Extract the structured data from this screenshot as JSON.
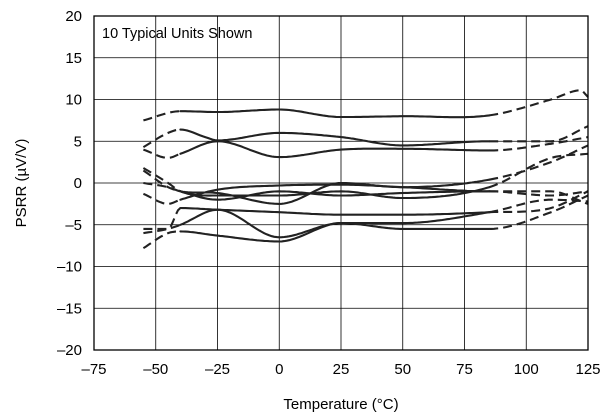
{
  "chart_data": {
    "type": "line",
    "title": "",
    "annotation": "10 Typical Units Shown",
    "xlabel": "Temperature (°C)",
    "ylabel": "PSRR (µV/V)",
    "xlim": [
      -75,
      125
    ],
    "ylim": [
      -20,
      20
    ],
    "x_ticks": [
      -75,
      -50,
      -25,
      0,
      25,
      50,
      75,
      100,
      125
    ],
    "y_ticks": [
      20,
      15,
      10,
      5,
      0,
      -5,
      -10,
      -15,
      -20
    ],
    "x_tick_labels": [
      "–75",
      "–50",
      "–25",
      "0",
      "25",
      "50",
      "75",
      "100",
      "125"
    ],
    "y_tick_labels": [
      "20",
      "15",
      "10",
      "5",
      "0",
      "–5",
      "–10",
      "–15",
      "–20"
    ],
    "grid": true,
    "legend": "none",
    "solid_range": [
      -40,
      85
    ],
    "series": [
      {
        "x": [
          -55,
          -40,
          -25,
          0,
          25,
          50,
          85,
          110,
          122,
          125
        ],
        "y": [
          7.5,
          8.6,
          8.5,
          8.8,
          7.9,
          8.0,
          8.1,
          10.0,
          11.1,
          10.3
        ]
      },
      {
        "x": [
          -55,
          -45,
          -40,
          -30,
          -25,
          0,
          25,
          50,
          85,
          110,
          125
        ],
        "y": [
          4.3,
          6.0,
          6.4,
          5.5,
          5.1,
          6.0,
          5.5,
          4.5,
          5.0,
          5.0,
          6.8
        ]
      },
      {
        "x": [
          -55,
          -45,
          -40,
          -25,
          0,
          25,
          50,
          85,
          110,
          125
        ],
        "y": [
          4.0,
          3.0,
          3.5,
          5.0,
          3.1,
          4.0,
          4.1,
          3.9,
          4.7,
          5.5
        ]
      },
      {
        "x": [
          -55,
          -45,
          -40,
          -25,
          0,
          25,
          50,
          85,
          110,
          125
        ],
        "y": [
          0.0,
          -0.5,
          -1.0,
          -1.2,
          -2.5,
          0.0,
          -0.5,
          0.4,
          2.5,
          4.5
        ]
      },
      {
        "x": [
          -55,
          -45,
          -40,
          -25,
          0,
          25,
          50,
          85,
          110,
          125
        ],
        "y": [
          1.8,
          0.0,
          -1.0,
          -1.5,
          -1.5,
          -1.0,
          -1.8,
          -0.5,
          3.0,
          3.5
        ]
      },
      {
        "x": [
          -55,
          -45,
          -40,
          -25,
          0,
          25,
          50,
          85,
          110,
          125
        ],
        "y": [
          -1.3,
          -2.5,
          -2.0,
          -0.8,
          -0.3,
          -0.2,
          -0.5,
          -1.0,
          -1.0,
          -2.5
        ]
      },
      {
        "x": [
          -55,
          -45,
          -40,
          -25,
          0,
          25,
          50,
          85,
          110,
          125
        ],
        "y": [
          1.5,
          -0.5,
          -1.0,
          -2.0,
          -1.0,
          -1.5,
          -1.2,
          -1.0,
          -1.5,
          -1.0
        ]
      },
      {
        "x": [
          -55,
          -45,
          -40,
          -25,
          0,
          25,
          50,
          85,
          110,
          125
        ],
        "y": [
          -5.5,
          -5.5,
          -3.0,
          -3.2,
          -3.5,
          -3.8,
          -3.8,
          -3.5,
          -3.0,
          -1.0
        ]
      },
      {
        "x": [
          -55,
          -45,
          -40,
          -25,
          0,
          25,
          50,
          85,
          110,
          125
        ],
        "y": [
          -6.0,
          -5.5,
          -5.0,
          -3.2,
          -6.5,
          -4.8,
          -4.8,
          -3.5,
          -2.0,
          -2.2
        ]
      },
      {
        "x": [
          -55,
          -45,
          -40,
          -25,
          0,
          25,
          50,
          85,
          110,
          125
        ],
        "y": [
          -7.8,
          -6.0,
          -5.8,
          -6.3,
          -7.0,
          -4.8,
          -5.5,
          -5.5,
          -3.5,
          -1.5
        ]
      }
    ]
  }
}
